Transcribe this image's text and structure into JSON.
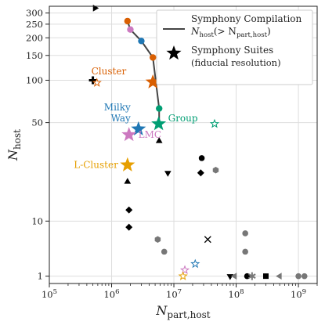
{
  "chart_data": {
    "type": "scatter",
    "xlabel_main": "N",
    "xlabel_sub": "part,host",
    "ylabel_main": "N",
    "ylabel_sub": "host",
    "xscale": "log",
    "yscale": "symlog",
    "xlim": [
      100000,
      2000000000
    ],
    "ylim": [
      -0.2,
      335
    ],
    "grid": true,
    "x_ticks": [
      {
        "value": 100000,
        "base": "10",
        "exp": "5"
      },
      {
        "value": 1000000,
        "base": "10",
        "exp": "6"
      },
      {
        "value": 10000000,
        "base": "10",
        "exp": "7"
      },
      {
        "value": 100000000,
        "base": "10",
        "exp": "8"
      },
      {
        "value": 1000000000,
        "base": "10",
        "exp": "9"
      }
    ],
    "y_ticks": [
      {
        "value": 1,
        "label": "1"
      },
      {
        "value": 10,
        "label": "10"
      },
      {
        "value": 50,
        "label": "50"
      },
      {
        "value": 100,
        "label": "100"
      },
      {
        "value": 150,
        "label": "150"
      },
      {
        "value": 200,
        "label": "200"
      },
      {
        "value": 250,
        "label": "250"
      },
      {
        "value": 300,
        "label": "300"
      }
    ],
    "legend": {
      "placement": "top-right",
      "line_label_1": "Symphony Compilation",
      "line_label_2_main": "N",
      "line_label_2_sub": "host",
      "line_label_2_cond": "(> N",
      "line_label_2_cond_sub": "part,host",
      "line_label_2_close": ")",
      "star_label_1": "Symphony Suites",
      "star_label_2": "(fiducial resolution)",
      "line_color": "#444444",
      "star_color": "#000000"
    },
    "curve": {
      "color": "#444444",
      "points": [
        [
          1800000,
          263
        ],
        [
          2000000,
          229
        ],
        [
          3000000,
          190
        ],
        [
          4600000,
          145
        ],
        [
          5800000,
          63
        ],
        [
          5800000,
          50
        ]
      ]
    },
    "curve_markers": [
      {
        "x": 1800000,
        "y": 263,
        "color": "#d95f02"
      },
      {
        "x": 2000000,
        "y": 229,
        "color": "#cc79c0"
      },
      {
        "x": 3000000,
        "y": 190,
        "color": "#1f77b4"
      },
      {
        "x": 4600000,
        "y": 145,
        "color": "#d95f02"
      },
      {
        "x": 5800000,
        "y": 63,
        "color": "#009e73"
      }
    ],
    "stars": [
      {
        "x": 4600000,
        "y": 97,
        "color": "#d95f02",
        "label": "Cluster"
      },
      {
        "x": 2700000,
        "y": 45,
        "color": "#1f77b4",
        "label": "Milky Way"
      },
      {
        "x": 5700000,
        "y": 49,
        "color": "#009e73",
        "label": "Group"
      },
      {
        "x": 1900000,
        "y": 41,
        "color": "#cc79c0",
        "label": "LMC"
      },
      {
        "x": 1800000,
        "y": 25,
        "color": "#e69f00",
        "label": "L-Cluster"
      }
    ],
    "open_stars": [
      {
        "x": 580000,
        "y": 96,
        "color": "#d95f02"
      },
      {
        "x": 45000000,
        "y": 49,
        "color": "#009e73"
      },
      {
        "x": 15000000,
        "y": 2,
        "color": "#cc79c0"
      },
      {
        "x": 22000000,
        "y": 3,
        "color": "#1f77b4"
      },
      {
        "x": 14000000,
        "y": 1,
        "color": "#e69f00"
      }
    ],
    "other_points": [
      {
        "x": 540000,
        "y": 325,
        "marker": "triangle-right",
        "color": "#000000"
      },
      {
        "x": 500000,
        "y": 100,
        "marker": "plus",
        "color": "#000000"
      },
      {
        "x": 5800000,
        "y": 37,
        "marker": "triangle-up",
        "color": "#000000"
      },
      {
        "x": 1800000,
        "y": 19,
        "marker": "triangle-up",
        "color": "#000000"
      },
      {
        "x": 8000000,
        "y": 22,
        "marker": "triangle-down",
        "color": "#000000"
      },
      {
        "x": 28000000,
        "y": 28,
        "marker": "circle",
        "color": "#000000"
      },
      {
        "x": 27000000,
        "y": 22,
        "marker": "diamond",
        "color": "#000000"
      },
      {
        "x": 47000000,
        "y": 23,
        "marker": "hexagon",
        "color": "#777777"
      },
      {
        "x": 1900000,
        "y": 12,
        "marker": "diamond",
        "color": "#000000"
      },
      {
        "x": 1900000,
        "y": 9,
        "marker": "diamond",
        "color": "#000000"
      },
      {
        "x": 5500000,
        "y": 7,
        "marker": "hexagon",
        "color": "#777777"
      },
      {
        "x": 7000000,
        "y": 5,
        "marker": "circle",
        "color": "#777777"
      },
      {
        "x": 35000000,
        "y": 7,
        "marker": "x",
        "color": "#000000"
      },
      {
        "x": 80000000,
        "y": 1,
        "marker": "triangle-down",
        "color": "#000000"
      },
      {
        "x": 95000000,
        "y": 1,
        "marker": "triangle-left",
        "color": "#777777"
      },
      {
        "x": 140000000,
        "y": 8,
        "marker": "circle",
        "color": "#777777"
      },
      {
        "x": 140000000,
        "y": 5,
        "marker": "circle",
        "color": "#777777"
      },
      {
        "x": 150000000,
        "y": 1,
        "marker": "circle",
        "color": "#000000"
      },
      {
        "x": 180000000,
        "y": 1,
        "marker": "star6",
        "color": "#777777"
      },
      {
        "x": 300000000,
        "y": 1,
        "marker": "square",
        "color": "#000000"
      },
      {
        "x": 500000000,
        "y": 1,
        "marker": "triangle-left",
        "color": "#777777"
      },
      {
        "x": 1000000000,
        "y": 1,
        "marker": "circle",
        "color": "#777777"
      },
      {
        "x": 1250000000,
        "y": 1,
        "marker": "circle",
        "color": "#777777"
      }
    ]
  }
}
